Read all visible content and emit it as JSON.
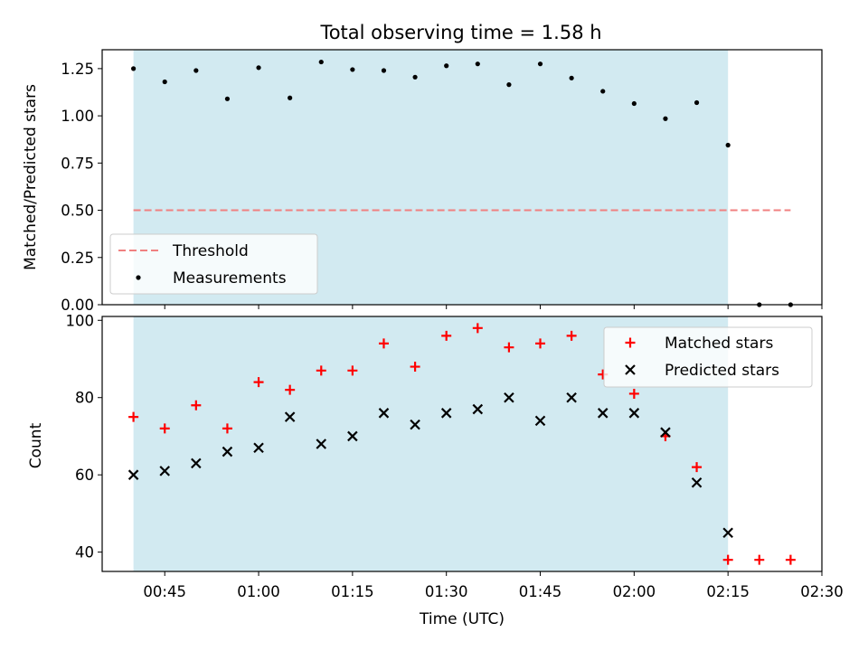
{
  "colors": {
    "shade": "#add8e6",
    "threshold": "#f08080",
    "matched": "#ff0000",
    "predicted": "#000000",
    "measurement": "#000000"
  },
  "chart_data": [
    {
      "type": "scatter",
      "title": "Total observing time = 1.58 h",
      "xlabel": "",
      "ylabel": "Matched/Predicted stars",
      "xlim": [
        "00:35",
        "02:30"
      ],
      "ylim": [
        0,
        1.35
      ],
      "yticks": [
        0,
        0.25,
        0.5,
        0.75,
        1.0,
        1.25
      ],
      "ytick_labels": [
        "0.00",
        "0.25",
        "0.50",
        "0.75",
        "1.00",
        "1.25"
      ],
      "shaded_interval": [
        "00:40",
        "02:15"
      ],
      "grid": false,
      "legend_position": "lower-left",
      "series": [
        {
          "name": "Threshold",
          "kind": "dashed-line",
          "x": [
            "00:40",
            "02:25"
          ],
          "y": [
            0.5,
            0.5
          ]
        },
        {
          "name": "Measurements",
          "kind": "dot",
          "x": [
            "00:40",
            "00:45",
            "00:50",
            "00:55",
            "01:00",
            "01:05",
            "01:10",
            "01:15",
            "01:20",
            "01:25",
            "01:30",
            "01:35",
            "01:40",
            "01:45",
            "01:50",
            "01:55",
            "02:00",
            "02:05",
            "02:10",
            "02:15",
            "02:20",
            "02:25"
          ],
          "y": [
            1.25,
            1.18,
            1.24,
            1.09,
            1.255,
            1.095,
            1.285,
            1.245,
            1.24,
            1.205,
            1.265,
            1.275,
            1.165,
            1.275,
            1.2,
            1.13,
            1.065,
            0.985,
            1.07,
            0.845,
            0.0,
            0.0
          ]
        }
      ]
    },
    {
      "type": "scatter",
      "xlabel": "Time (UTC)",
      "ylabel": "Count",
      "xlim": [
        "00:35",
        "02:30"
      ],
      "ylim": [
        35,
        101
      ],
      "yticks": [
        40,
        60,
        80,
        100
      ],
      "xticks": [
        "00:45",
        "01:00",
        "01:15",
        "01:30",
        "01:45",
        "02:00",
        "02:15",
        "02:30"
      ],
      "shaded_interval": [
        "00:40",
        "02:15"
      ],
      "grid": false,
      "legend_position": "upper-right",
      "series": [
        {
          "name": "Matched stars",
          "marker": "plus",
          "x": [
            "00:40",
            "00:45",
            "00:50",
            "00:55",
            "01:00",
            "01:05",
            "01:10",
            "01:15",
            "01:20",
            "01:25",
            "01:30",
            "01:35",
            "01:40",
            "01:45",
            "01:50",
            "01:55",
            "02:00",
            "02:05",
            "02:10",
            "02:15",
            "02:20",
            "02:25"
          ],
          "y": [
            75,
            72,
            78,
            72,
            84,
            82,
            87,
            87,
            94,
            88,
            96,
            98,
            93,
            94,
            96,
            86,
            81,
            70,
            62,
            38,
            38,
            38
          ]
        },
        {
          "name": "Predicted stars",
          "marker": "x",
          "x": [
            "00:40",
            "00:45",
            "00:50",
            "00:55",
            "01:00",
            "01:05",
            "01:10",
            "01:15",
            "01:20",
            "01:25",
            "01:30",
            "01:35",
            "01:40",
            "01:45",
            "01:50",
            "01:55",
            "02:00",
            "02:05",
            "02:10",
            "02:15"
          ],
          "y": [
            60,
            61,
            63,
            66,
            67,
            75,
            68,
            70,
            76,
            73,
            76,
            77,
            80,
            74,
            80,
            76,
            76,
            71,
            58,
            45
          ]
        }
      ]
    }
  ]
}
